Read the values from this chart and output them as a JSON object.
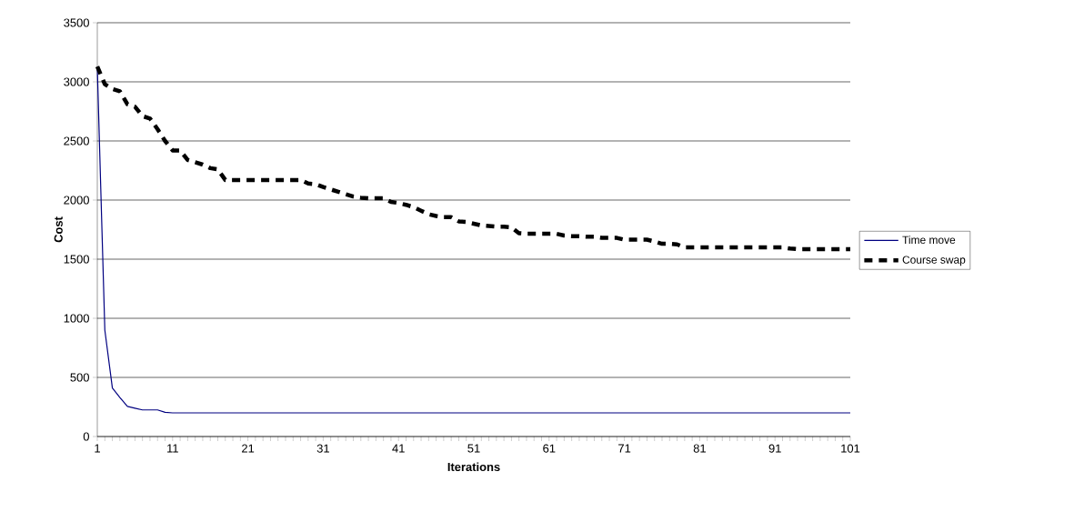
{
  "chart_data": {
    "type": "line",
    "xlabel": "Iterations",
    "ylabel": "Cost",
    "x": [
      1,
      2,
      3,
      4,
      5,
      6,
      7,
      8,
      9,
      10,
      11,
      12,
      13,
      14,
      15,
      16,
      17,
      18,
      19,
      20,
      21,
      22,
      23,
      24,
      25,
      26,
      27,
      28,
      29,
      30,
      31,
      32,
      33,
      34,
      35,
      36,
      37,
      38,
      39,
      40,
      41,
      42,
      43,
      44,
      45,
      46,
      47,
      48,
      49,
      50,
      51,
      52,
      53,
      54,
      55,
      56,
      57,
      58,
      59,
      60,
      61,
      62,
      63,
      64,
      65,
      66,
      67,
      68,
      69,
      70,
      71,
      72,
      73,
      74,
      75,
      76,
      77,
      78,
      79,
      80,
      81,
      82,
      83,
      84,
      85,
      86,
      87,
      88,
      89,
      90,
      91,
      92,
      93,
      94,
      95,
      96,
      97,
      98,
      99,
      100,
      101
    ],
    "xlim": [
      1,
      101
    ],
    "xticks": [
      1,
      11,
      21,
      31,
      41,
      51,
      61,
      71,
      81,
      91,
      101
    ],
    "ylim": [
      0,
      3500
    ],
    "yticks": [
      0,
      500,
      1000,
      1500,
      2000,
      2500,
      3000,
      3500
    ],
    "grid": "y",
    "legend": "right",
    "marker": "none",
    "series": [
      {
        "name": "Time move",
        "color": "#000080",
        "line_style": "solid",
        "values": [
          3120,
          900,
          410,
          330,
          255,
          240,
          225,
          225,
          225,
          205,
          200,
          200,
          200,
          200,
          200,
          200,
          200,
          200,
          200,
          200,
          200,
          200,
          200,
          200,
          200,
          200,
          200,
          200,
          200,
          200,
          200,
          200,
          200,
          200,
          200,
          200,
          200,
          200,
          200,
          200,
          200,
          200,
          200,
          200,
          200,
          200,
          200,
          200,
          200,
          200,
          200,
          200,
          200,
          200,
          200,
          200,
          200,
          200,
          200,
          200,
          200,
          200,
          200,
          200,
          200,
          200,
          200,
          200,
          200,
          200,
          200,
          200,
          200,
          200,
          200,
          200,
          200,
          200,
          200,
          200,
          200,
          200,
          200,
          200,
          200,
          200,
          200,
          200,
          200,
          200,
          200,
          200,
          200,
          200,
          200,
          200,
          200,
          200,
          200,
          200,
          200
        ]
      },
      {
        "name": "Course swap",
        "color": "#000000",
        "line_style": "dashed",
        "values": [
          3130,
          2980,
          2940,
          2920,
          2810,
          2790,
          2710,
          2690,
          2600,
          2500,
          2420,
          2420,
          2340,
          2320,
          2300,
          2270,
          2260,
          2170,
          2170,
          2170,
          2170,
          2170,
          2170,
          2170,
          2170,
          2170,
          2170,
          2170,
          2140,
          2135,
          2110,
          2090,
          2070,
          2050,
          2030,
          2020,
          2015,
          2015,
          2015,
          1985,
          1975,
          1960,
          1940,
          1910,
          1880,
          1865,
          1855,
          1855,
          1820,
          1815,
          1800,
          1785,
          1780,
          1775,
          1775,
          1770,
          1720,
          1715,
          1715,
          1715,
          1715,
          1715,
          1700,
          1695,
          1695,
          1690,
          1690,
          1680,
          1680,
          1680,
          1665,
          1665,
          1665,
          1665,
          1650,
          1630,
          1630,
          1625,
          1600,
          1600,
          1600,
          1600,
          1600,
          1600,
          1600,
          1600,
          1600,
          1600,
          1600,
          1600,
          1600,
          1600,
          1590,
          1585,
          1585,
          1585,
          1585,
          1585,
          1585,
          1585,
          1585
        ]
      }
    ]
  }
}
